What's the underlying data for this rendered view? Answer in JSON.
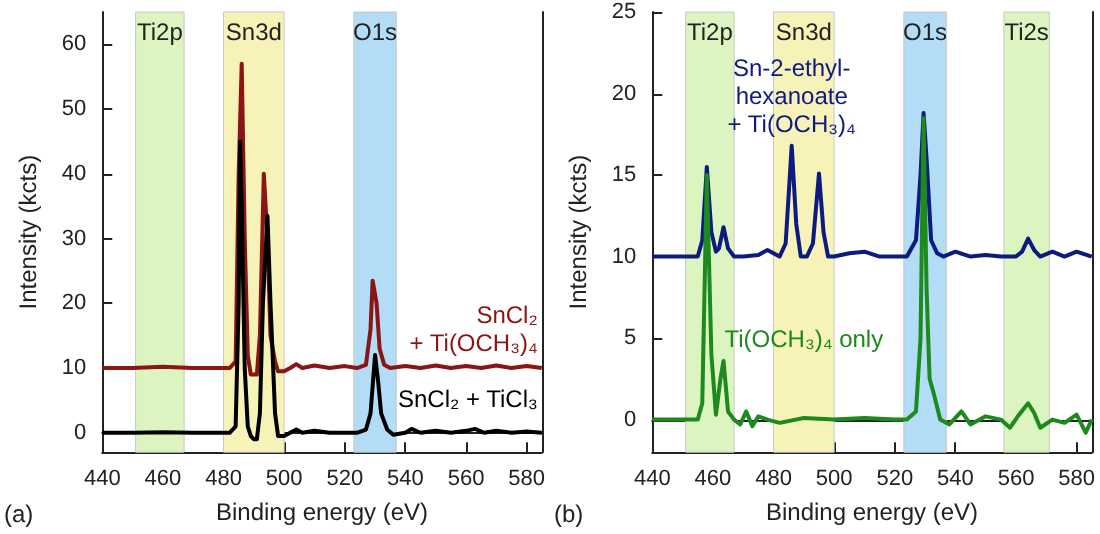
{
  "chart_data": [
    {
      "type": "line",
      "xlabel": "Binding energy (eV)",
      "ylabel": "Intensity (kcts)",
      "xlim": [
        440,
        585
      ],
      "xticks": [
        440,
        460,
        480,
        500,
        520,
        540,
        560,
        580
      ],
      "ylim": [
        -3,
        65
      ],
      "yticks": [
        0,
        10,
        20,
        30,
        40,
        50,
        60
      ],
      "annotations": [
        "(a)"
      ],
      "bands": [
        {
          "axis": "x",
          "from": 451,
          "to": 467,
          "label": "Ti2p",
          "color": "#dcf5c0"
        },
        {
          "axis": "x",
          "from": 480,
          "to": 500,
          "label": "Sn3d",
          "color": "#f7f2b8"
        },
        {
          "axis": "x",
          "from": 523,
          "to": 537,
          "label": "O1s",
          "color": "#b3dcf7"
        }
      ],
      "series": [
        {
          "name": "SnCl₂\n+ Ti(OCH₃)₄",
          "color": "#8b1414",
          "x": [
            440,
            450,
            460,
            470,
            478,
            482,
            484,
            485,
            486,
            487,
            488,
            489,
            491,
            492,
            493.3,
            494.5,
            495.5,
            497,
            498,
            500,
            502,
            504,
            506,
            510,
            515,
            520,
            524,
            527,
            528.5,
            529.2,
            530.5,
            531.5,
            533,
            535,
            540,
            545,
            550,
            555,
            560,
            565,
            570,
            575,
            580,
            585
          ],
          "values": [
            10,
            10,
            10.2,
            10,
            10,
            10,
            11,
            40,
            57,
            30,
            12,
            9,
            9,
            15,
            40,
            30,
            15,
            11,
            9.5,
            9.5,
            10,
            10.6,
            10,
            10.4,
            10,
            10.3,
            10,
            10.5,
            16,
            23.5,
            20,
            13,
            10.5,
            10,
            10.3,
            10,
            10.4,
            10,
            10.3,
            10,
            10.4,
            10,
            10.3,
            10
          ]
        },
        {
          "name": "SnCl₂ + TiCl₃",
          "color": "#000000",
          "x": [
            440,
            450,
            460,
            470,
            478,
            482,
            484,
            485,
            485.5,
            486,
            487,
            488,
            489,
            490,
            491,
            492,
            493,
            494.5,
            495.5,
            497,
            498,
            500,
            502,
            504,
            506,
            510,
            515,
            520,
            524,
            527,
            528.5,
            530,
            531,
            532,
            534,
            536,
            540,
            542,
            545,
            550,
            555,
            560,
            563,
            566,
            570,
            575,
            580,
            585
          ],
          "values": [
            0,
            0,
            0.1,
            0,
            0,
            0,
            1,
            20,
            45,
            35,
            10,
            1,
            -0.5,
            -1,
            -1,
            3,
            20,
            33.5,
            20,
            3,
            -0.5,
            -0.5,
            0,
            0.5,
            0,
            0.3,
            0,
            0,
            0,
            0.5,
            3,
            12,
            8,
            3,
            0.5,
            -0.3,
            0,
            0.6,
            0,
            0.3,
            0,
            0.3,
            0.6,
            0,
            0.3,
            0,
            0.2,
            0
          ]
        }
      ]
    },
    {
      "type": "line",
      "xlabel": "Binding energy (eV)",
      "ylabel": "Intensity (kcts)",
      "xlim": [
        440,
        585
      ],
      "xticks": [
        440,
        460,
        480,
        500,
        520,
        540,
        560,
        580
      ],
      "ylim": [
        -2,
        25
      ],
      "yticks": [
        0,
        5,
        10,
        15,
        20,
        25
      ],
      "annotations": [
        "(b)"
      ],
      "bands": [
        {
          "axis": "x",
          "from": 451,
          "to": 467,
          "label": "Ti2p",
          "color": "#dcf5c0"
        },
        {
          "axis": "x",
          "from": 480,
          "to": 500,
          "label": "Sn3d",
          "color": "#f7f2b8"
        },
        {
          "axis": "x",
          "from": 523,
          "to": 537,
          "label": "O1s",
          "color": "#b3dcf7"
        },
        {
          "axis": "x",
          "from": 556,
          "to": 571,
          "label": "Ti2s",
          "color": "#dcf5c0"
        }
      ],
      "series": [
        {
          "name": "Sn-2-ethyl-\nhexanoate\n+ Ti(OCH₃)₄",
          "color": "#0d1a80",
          "x": [
            440,
            445,
            450,
            455,
            456.5,
            458,
            459.5,
            461,
            462,
            463.5,
            465,
            467,
            470,
            475,
            478,
            482,
            484,
            486,
            487.5,
            489,
            491,
            493,
            495,
            496.5,
            498,
            500,
            505,
            510,
            515,
            520,
            524,
            527,
            528.5,
            529.5,
            530.5,
            532,
            534,
            536,
            540,
            545,
            550,
            555,
            560,
            562,
            564,
            566,
            568,
            572,
            576,
            580,
            585
          ],
          "values": [
            10,
            10,
            10,
            10,
            11,
            15.5,
            11.5,
            10.3,
            10.5,
            11.8,
            10.5,
            10,
            10,
            10.1,
            10.4,
            10,
            10.8,
            16.8,
            12,
            10,
            10,
            10.8,
            15.1,
            11.5,
            10,
            10,
            10.2,
            10.3,
            10,
            10,
            10,
            11,
            15,
            18.8,
            16,
            11,
            10.2,
            10,
            10.3,
            10,
            10.1,
            10,
            10,
            10.3,
            11.1,
            10.4,
            10,
            10.3,
            10,
            10.3,
            10
          ]
        },
        {
          "name": "Ti(OCH₃)₄ only",
          "color": "#1c8a1c",
          "x": [
            440,
            445,
            450,
            455,
            456.5,
            458,
            459.5,
            461,
            462.5,
            463.5,
            465,
            467,
            469,
            471,
            473,
            475,
            478,
            482,
            490,
            500,
            510,
            520,
            524,
            527,
            528.5,
            529.5,
            530.5,
            531.5,
            533,
            535,
            538,
            542,
            545,
            550,
            555,
            558,
            561,
            564,
            566,
            568,
            572,
            576,
            580,
            583,
            585
          ],
          "values": [
            0,
            0,
            0,
            0,
            1,
            15,
            4,
            0.3,
            2.5,
            3.6,
            0.5,
            0,
            -0.3,
            0.5,
            -0.4,
            0.2,
            0,
            -0.2,
            0.1,
            0,
            0.1,
            0,
            0,
            0.5,
            5,
            18.5,
            8,
            2.5,
            1.5,
            0,
            -0.3,
            0.5,
            -0.3,
            0.2,
            0,
            -0.5,
            0.3,
            1,
            0.4,
            -0.5,
            0,
            -0.2,
            0.3,
            -0.8,
            0
          ]
        }
      ]
    }
  ]
}
